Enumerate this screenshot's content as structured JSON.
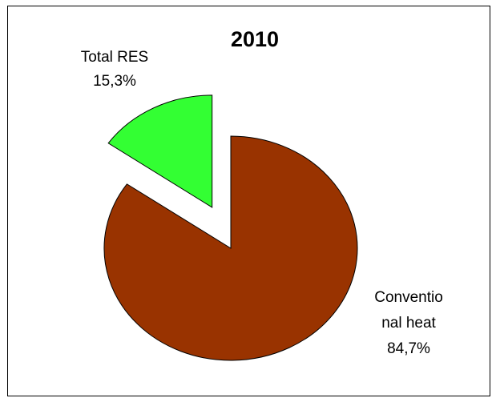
{
  "chart_data": {
    "type": "pie",
    "title": "2010",
    "colors": [
      "#993300",
      "#33ff33"
    ],
    "slices": [
      {
        "label_lines": [
          "Conventio",
          "nal heat"
        ],
        "value": 84.7,
        "value_label": "84,7%",
        "exploded": false
      },
      {
        "label_lines": [
          "Total RES"
        ],
        "value": 15.3,
        "value_label": "15,3%",
        "exploded": true
      }
    ]
  }
}
